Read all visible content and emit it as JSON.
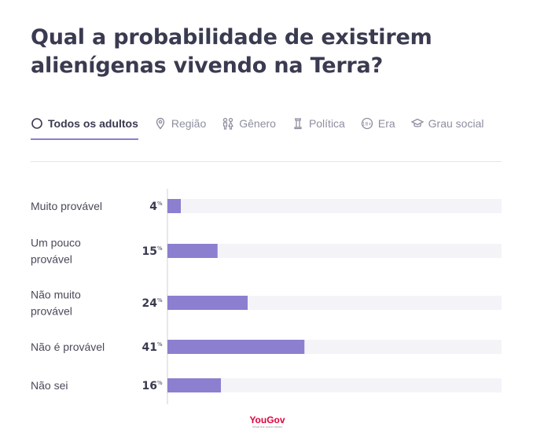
{
  "chart_data": {
    "type": "bar",
    "orientation": "horizontal",
    "title": "Qual a probabilidade de existirem alienígenas vivendo na Terra?",
    "categories": [
      "Muito provável",
      "Um pouco provável",
      "Não muito provável",
      "Não é provável",
      "Não sei"
    ],
    "category_lines": [
      [
        "Muito provável"
      ],
      [
        "Um pouco",
        "provável"
      ],
      [
        "Não muito",
        "provável"
      ],
      [
        "Não é provável"
      ],
      [
        "Não sei"
      ]
    ],
    "values": [
      4,
      15,
      24,
      41,
      16
    ],
    "value_suffix": "%",
    "xlim": [
      0,
      100
    ],
    "grid": false,
    "colors": {
      "bar": "#8c7fd0",
      "track": "#f4f4f8",
      "axis": "#cfcfd8"
    }
  },
  "tabs": [
    {
      "label": "Todos os adultos",
      "icon": "circle-icon",
      "active": true
    },
    {
      "label": "Região",
      "icon": "location-pin-icon",
      "active": false
    },
    {
      "label": "Gênero",
      "icon": "gender-icon",
      "active": false
    },
    {
      "label": "Política",
      "icon": "tower-icon",
      "active": false
    },
    {
      "label": "Era",
      "icon": "age-icon",
      "active": false
    },
    {
      "label": "Grau social",
      "icon": "graduation-cap-icon",
      "active": false
    }
  ],
  "branding": {
    "logo": "YouGov",
    "tagline": "What the world thinks"
  }
}
